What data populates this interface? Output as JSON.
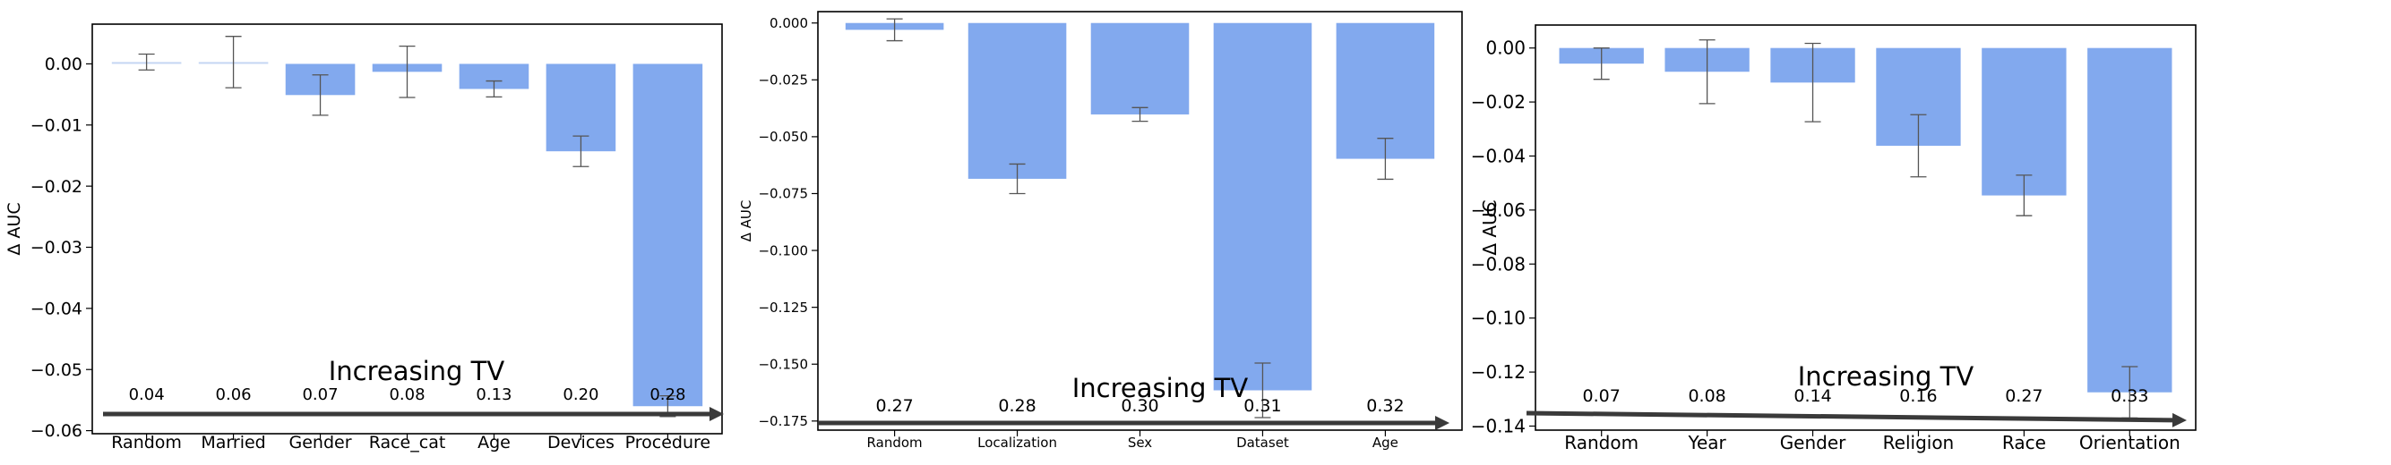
{
  "chart_data": [
    {
      "type": "bar",
      "ylabel": "Δ AUC",
      "ylim": [
        -0.0605,
        0.0065
      ],
      "yticks": [
        0.0,
        -0.01,
        -0.02,
        -0.03,
        -0.04,
        -0.05,
        -0.06
      ],
      "ytick_labels": [
        "0.00",
        "−0.01",
        "−0.02",
        "−0.03",
        "−0.04",
        "−0.05",
        "−0.06"
      ],
      "categories": [
        "Random",
        "Married",
        "Gender",
        "Race_cat",
        "Age",
        "Devices",
        "Procedure"
      ],
      "values": [
        0.0003,
        0.0003,
        -0.0051,
        -0.0013,
        -0.0041,
        -0.0143,
        -0.056
      ],
      "errors": [
        0.0013,
        0.0042,
        0.0033,
        0.0042,
        0.0013,
        0.0025,
        0.0017
      ],
      "bar_colors": [
        "#c6d6f3",
        "#c6d6f3",
        "#82a9ee",
        "#82a9ee",
        "#82a9ee",
        "#82a9ee",
        "#82a9ee"
      ],
      "tv_values": [
        "0.04",
        "0.06",
        "0.07",
        "0.08",
        "0.13",
        "0.20",
        "0.28"
      ],
      "annotation": "Increasing TV",
      "grid": false
    },
    {
      "type": "bar",
      "ylabel": "Δ AUC",
      "ylim": [
        -0.179,
        0.005
      ],
      "yticks": [
        0.0,
        -0.025,
        -0.05,
        -0.075,
        -0.1,
        -0.125,
        -0.15,
        -0.175
      ],
      "ytick_labels": [
        "0.000",
        "−0.025",
        "−0.050",
        "−0.075",
        "−0.100",
        "−0.125",
        "−0.150",
        "−0.175"
      ],
      "categories": [
        "Random",
        "Localization",
        "Sex",
        "Dataset",
        "Age"
      ],
      "values": [
        -0.003,
        -0.0685,
        -0.0402,
        -0.1615,
        -0.0597
      ],
      "errors": [
        0.0048,
        0.0065,
        0.003,
        0.012,
        0.009
      ],
      "bar_colors": [
        "#82a9ee",
        "#82a9ee",
        "#82a9ee",
        "#82a9ee",
        "#82a9ee"
      ],
      "tv_values": [
        "0.27",
        "0.28",
        "0.30",
        "0.31",
        "0.32"
      ],
      "annotation": "Increasing TV",
      "grid": false
    },
    {
      "type": "bar",
      "ylabel": "Δ AUC",
      "ylim": [
        -0.1415,
        0.0085
      ],
      "yticks": [
        0.0,
        -0.02,
        -0.04,
        -0.06,
        -0.08,
        -0.1,
        -0.12,
        -0.14
      ],
      "ytick_labels": [
        "0.00",
        "−0.02",
        "−0.04",
        "−0.06",
        "−0.08",
        "−0.10",
        "−0.12",
        "−0.14"
      ],
      "categories": [
        "Random",
        "Year",
        "Gender",
        "Religion",
        "Race",
        "Orientation"
      ],
      "values": [
        -0.0058,
        -0.0088,
        -0.0128,
        -0.0362,
        -0.0546,
        -0.1275
      ],
      "errors": [
        0.0058,
        0.0118,
        0.0145,
        0.0115,
        0.0075,
        0.0095
      ],
      "bar_colors": [
        "#82a9ee",
        "#82a9ee",
        "#82a9ee",
        "#82a9ee",
        "#82a9ee",
        "#82a9ee"
      ],
      "tv_values": [
        "0.07",
        "0.08",
        "0.14",
        "0.16",
        "0.27",
        "0.33"
      ],
      "annotation": "Increasing TV",
      "grid": false
    }
  ]
}
